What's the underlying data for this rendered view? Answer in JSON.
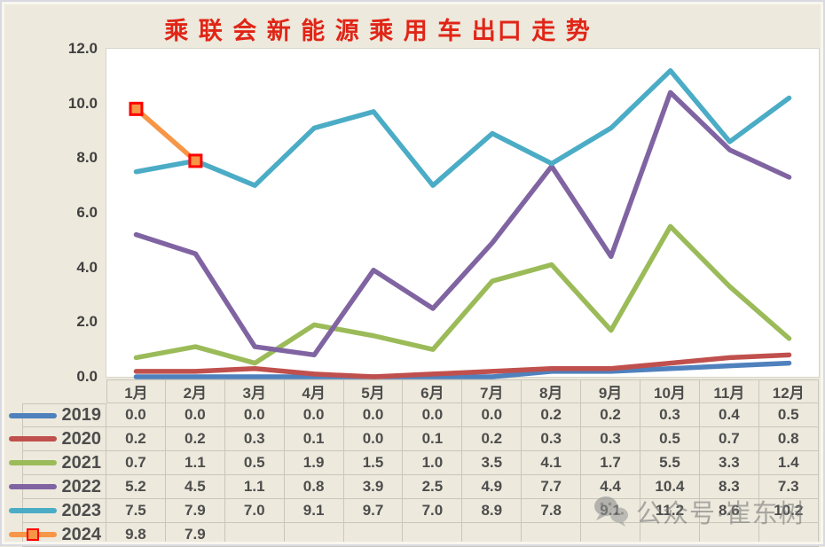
{
  "title": "乘 联 会 新 能 源 乘 用 车 出口 走 势",
  "watermark": {
    "icon": "wechat-icon",
    "text": "公众号·崔东树"
  },
  "colors": {
    "background": "#EDE9DC",
    "title": "#E02517",
    "plot_background": "#FFFFFF",
    "table_border": "#C9C6BB",
    "table_text": "#4D4D4D",
    "axis_text": "#404040",
    "watermark": "#7C7C7C",
    "marker_border": "#FF0000"
  },
  "chart_data": {
    "type": "line",
    "title": "乘联会新能源乘用车出口走势",
    "categories": [
      "1月",
      "2月",
      "3月",
      "4月",
      "5月",
      "6月",
      "7月",
      "8月",
      "9月",
      "10月",
      "11月",
      "12月"
    ],
    "series": [
      {
        "name": "2019",
        "color": "#4F81BD",
        "values": [
          0.0,
          0.0,
          0.0,
          0.0,
          0.0,
          0.0,
          0.0,
          0.2,
          0.2,
          0.3,
          0.4,
          0.5
        ]
      },
      {
        "name": "2020",
        "color": "#C0504D",
        "values": [
          0.2,
          0.2,
          0.3,
          0.1,
          0.0,
          0.1,
          0.2,
          0.3,
          0.3,
          0.5,
          0.7,
          0.8
        ]
      },
      {
        "name": "2021",
        "color": "#9BBB59",
        "values": [
          0.7,
          1.1,
          0.5,
          1.9,
          1.5,
          1.0,
          3.5,
          4.1,
          1.7,
          5.5,
          3.3,
          1.4
        ]
      },
      {
        "name": "2022",
        "color": "#8064A2",
        "values": [
          5.2,
          4.5,
          1.1,
          0.8,
          3.9,
          2.5,
          4.9,
          7.7,
          4.4,
          10.4,
          8.3,
          7.3
        ]
      },
      {
        "name": "2023",
        "color": "#4BACC6",
        "values": [
          7.5,
          7.9,
          7.0,
          9.1,
          9.7,
          7.0,
          8.9,
          7.8,
          9.1,
          11.2,
          8.6,
          10.2
        ]
      },
      {
        "name": "2024",
        "color": "#F79646",
        "marker": "square",
        "marker_border_color": "#FF0000",
        "values": [
          9.8,
          7.9
        ]
      }
    ],
    "ylim": [
      0,
      12
    ],
    "ytick_labels": [
      "12.0",
      "10.0",
      "8.0",
      "6.0",
      "4.0",
      "2.0",
      "0.0"
    ],
    "grid": false,
    "legend_position": "table-rows-left",
    "xlabel": "",
    "ylabel": ""
  }
}
